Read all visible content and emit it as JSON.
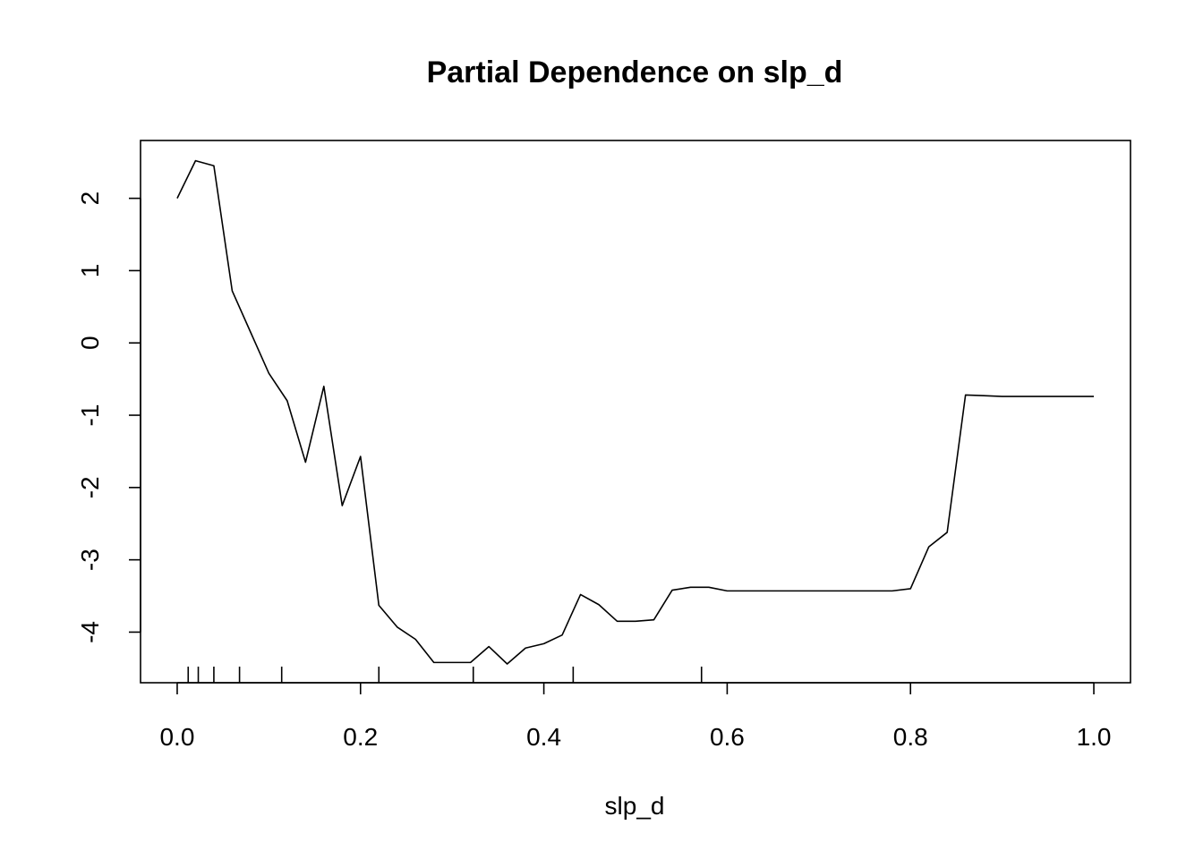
{
  "chart_data": {
    "type": "line",
    "title": "Partial Dependence on slp_d",
    "xlabel": "slp_d",
    "ylabel": "",
    "xlim": [
      -0.04,
      1.04
    ],
    "ylim": [
      -4.7,
      2.8
    ],
    "x_ticks": [
      0.0,
      0.2,
      0.4,
      0.6,
      0.8,
      1.0
    ],
    "x_tick_labels": [
      "0.0",
      "0.2",
      "0.4",
      "0.6",
      "0.8",
      "1.0"
    ],
    "y_ticks": [
      -4,
      -3,
      -2,
      -1,
      0,
      1,
      2
    ],
    "y_tick_labels": [
      "-4",
      "-3",
      "-2",
      "-1",
      "0",
      "1",
      "2"
    ],
    "grid": false,
    "box": true,
    "series": [
      {
        "x": [
          0.0,
          0.02,
          0.04,
          0.06,
          0.08,
          0.1,
          0.12,
          0.14,
          0.16,
          0.18,
          0.2,
          0.22,
          0.24,
          0.26,
          0.28,
          0.3,
          0.32,
          0.34,
          0.36,
          0.38,
          0.4,
          0.42,
          0.44,
          0.46,
          0.48,
          0.5,
          0.52,
          0.54,
          0.56,
          0.58,
          0.6,
          0.62,
          0.64,
          0.66,
          0.68,
          0.7,
          0.72,
          0.74,
          0.76,
          0.78,
          0.8,
          0.82,
          0.84,
          0.86,
          0.88,
          0.9,
          0.92,
          0.94,
          0.96,
          0.98,
          1.0
        ],
        "y": [
          2.0,
          2.52,
          2.45,
          0.72,
          0.15,
          -0.42,
          -0.8,
          -1.65,
          -0.6,
          -2.25,
          -1.57,
          -3.63,
          -3.93,
          -4.1,
          -4.42,
          -4.42,
          -4.42,
          -4.2,
          -4.44,
          -4.22,
          -4.16,
          -4.04,
          -3.48,
          -3.62,
          -3.85,
          -3.85,
          -3.83,
          -3.42,
          -3.38,
          -3.38,
          -3.43,
          -3.43,
          -3.43,
          -3.43,
          -3.43,
          -3.43,
          -3.43,
          -3.43,
          -3.43,
          -3.43,
          -3.4,
          -2.82,
          -2.62,
          -0.72,
          -0.73,
          -0.74,
          -0.74,
          -0.74,
          -0.74,
          -0.74,
          -0.74
        ]
      }
    ],
    "rug": [
      0.012,
      0.023,
      0.04,
      0.068,
      0.114,
      0.22,
      0.323,
      0.432,
      0.572
    ]
  }
}
